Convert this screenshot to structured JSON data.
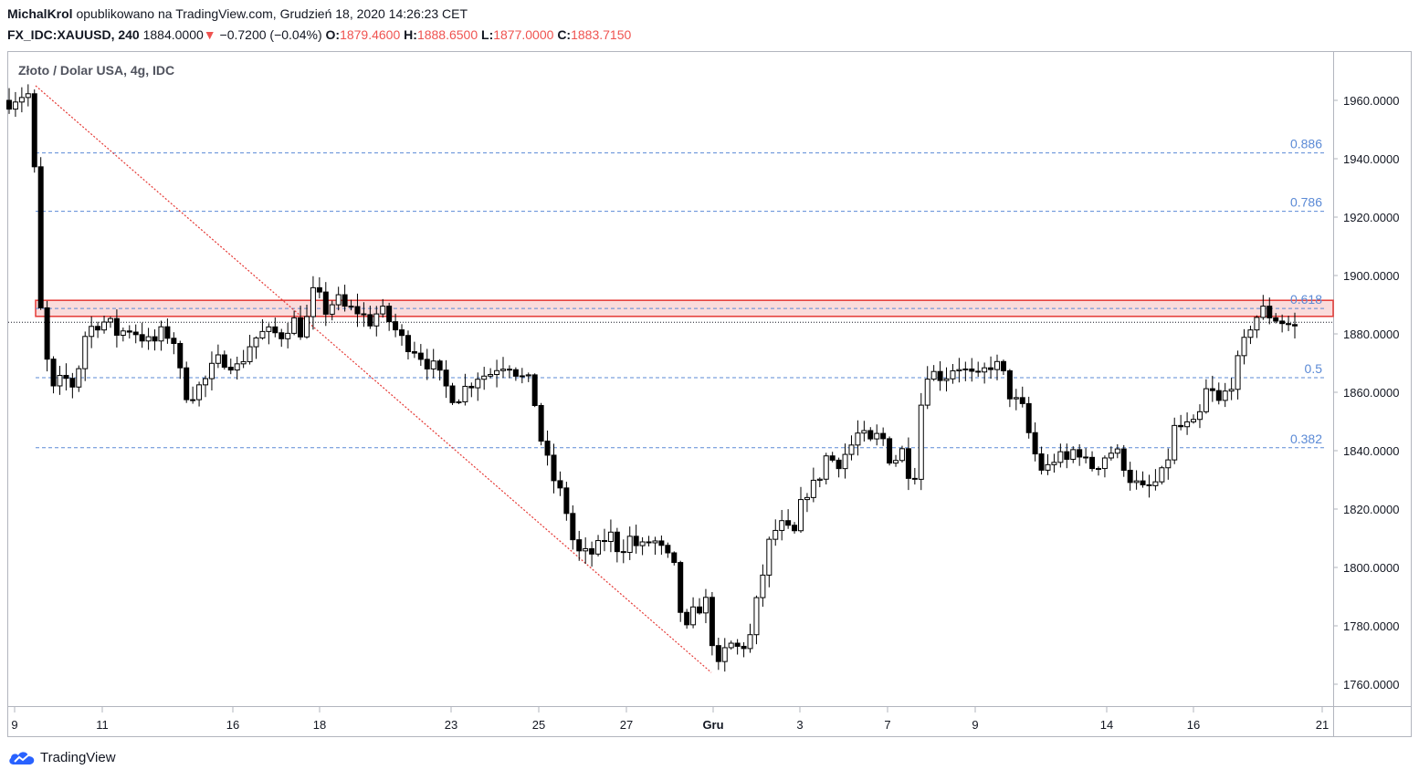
{
  "header": {
    "author": "MichalKrol",
    "published": "opublikowano na TradingView.com, Grudzień 18, 2020 14:26:23 CET",
    "symbol": "FX_IDC:XAUUSD, 240",
    "last": "1884.0000",
    "change": "−0.7200 (−0.04%)",
    "o_label": "O:",
    "o_value": "1879.4600",
    "h_label": "H:",
    "h_value": "1888.6500",
    "l_label": "L:",
    "l_value": "1877.0000",
    "c_label": "C:",
    "c_value": "1883.7150"
  },
  "footer": {
    "brand": "TradingView",
    "logo_icon": "tradingview-cloud-icon"
  },
  "colors": {
    "up": "#ffffff",
    "down": "#000000",
    "fib": "#5b8ad6",
    "zone": "#e53935",
    "trend": "#e53935"
  },
  "chart_data": {
    "type": "candlestick",
    "title": "Złoto / Dolar USA, 4g, IDC",
    "ylim": [
      1754,
      1972
    ],
    "y_ticks": [
      "1960.0000",
      "1940.0000",
      "1920.0000",
      "1900.0000",
      "1880.0000",
      "1860.0000",
      "1840.0000",
      "1820.0000",
      "1800.0000",
      "1780.0000",
      "1760.0000"
    ],
    "x_ticks": [
      "9",
      "11",
      "16",
      "18",
      "23",
      "25",
      "27",
      "Gru",
      "3",
      "7",
      "9",
      "14",
      "16",
      "21"
    ],
    "fib_levels": [
      {
        "label": "0.886",
        "value": 1942
      },
      {
        "label": "0.786",
        "value": 1922
      },
      {
        "label": "0.618",
        "value": 1888.7
      },
      {
        "label": "0.5",
        "value": 1865
      },
      {
        "label": "0.382",
        "value": 1841
      }
    ],
    "resistance_zone": [
      1886,
      1891.5
    ],
    "last_price": 1884,
    "trendline": [
      [
        1965,
        1764
      ]
    ],
    "anchors": [
      1960,
      1962,
      1962,
      1880,
      1860,
      1865,
      1862,
      1880,
      1884,
      1884,
      1880,
      1882,
      1880,
      1876,
      1880,
      1880,
      1860,
      1860,
      1864,
      1870,
      1872,
      1868,
      1876,
      1880,
      1880,
      1880,
      1885,
      1880,
      1895,
      1888,
      1892,
      1888,
      1888,
      1884,
      1888,
      1884,
      1878,
      1876,
      1872,
      1868,
      1862,
      1858,
      1862,
      1866,
      1866,
      1870,
      1870,
      1865,
      1862,
      1840,
      1830,
      1822,
      1805,
      1804,
      1806,
      1812,
      1806,
      1810,
      1806,
      1810,
      1805,
      1800,
      1776,
      1786,
      1788,
      1764,
      1774,
      1772,
      1776,
      1795,
      1812,
      1814,
      1810,
      1826,
      1828,
      1838,
      1836,
      1840,
      1846,
      1842,
      1846,
      1836,
      1840,
      1828,
      1868,
      1866,
      1866,
      1870,
      1866,
      1864,
      1870,
      1868,
      1858,
      1854,
      1840,
      1832,
      1838,
      1836,
      1842,
      1834,
      1836,
      1840,
      1838,
      1830,
      1826,
      1828,
      1832,
      1848,
      1848,
      1848,
      1862,
      1856,
      1862,
      1872,
      1884,
      1888,
      1886,
      1884,
      1882
    ]
  }
}
